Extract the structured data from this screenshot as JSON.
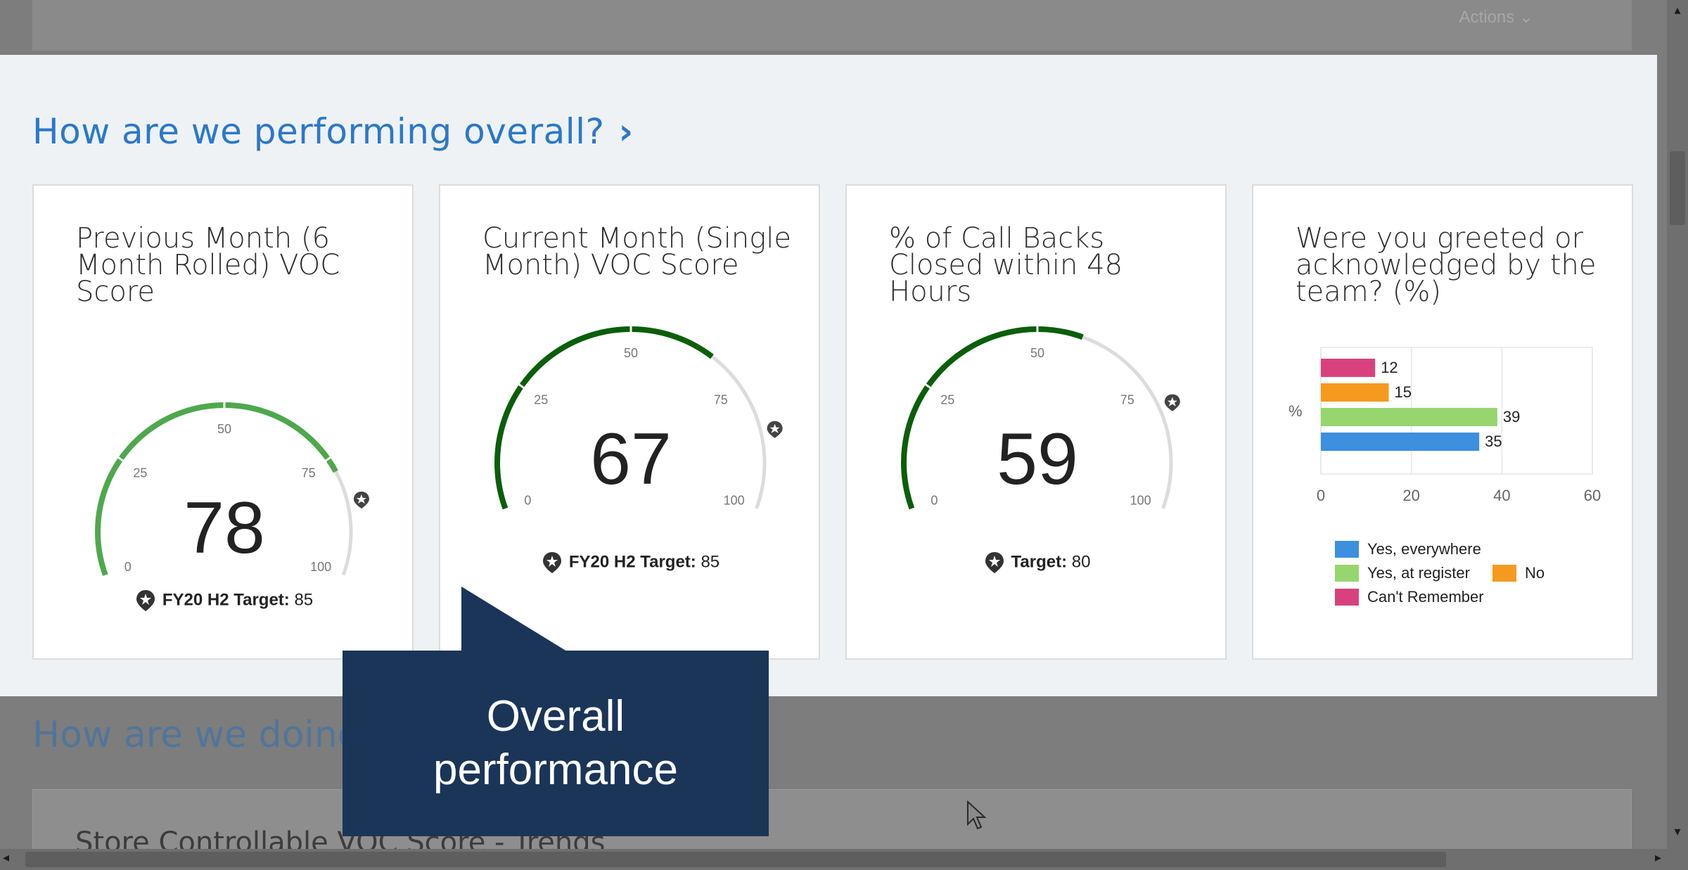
{
  "background": {
    "actions_label": "Actions",
    "next_section_title": "How are we doing",
    "next_card_title": "Store Controllable VOC Score - Trends"
  },
  "section": {
    "title": "How are we performing overall?",
    "chevron_icon": "chevron-right-icon"
  },
  "cards": [
    {
      "title": "Previous Month (6 Month Rolled) VOC Score",
      "value": "78",
      "gauge": {
        "min": 0,
        "max": 100,
        "value": 78,
        "target": 85,
        "ticks": [
          "0",
          "25",
          "50",
          "75",
          "100"
        ],
        "color": "#4ea84c"
      },
      "target_label": "FY20 H2 Target:",
      "target_value": "85"
    },
    {
      "title": "Current Month (Single Month) VOC Score",
      "value": "67",
      "gauge": {
        "min": 0,
        "max": 100,
        "value": 67,
        "target": 85,
        "ticks": [
          "0",
          "25",
          "50",
          "75",
          "100"
        ],
        "color": "#0b5e0b"
      },
      "target_label": "FY20 H2 Target:",
      "target_value": "85"
    },
    {
      "title": "% of Call Backs Closed within 48 Hours",
      "value": "59",
      "gauge": {
        "min": 0,
        "max": 100,
        "value": 59,
        "target": 80,
        "ticks": [
          "0",
          "25",
          "50",
          "75",
          "100"
        ],
        "color": "#0b5e0b"
      },
      "target_label": "Target:",
      "target_value": "80"
    },
    {
      "title": "Were you greeted or acknowledged by the team? (%)",
      "chart_ref": "chart_data"
    }
  ],
  "chart_data": {
    "type": "bar",
    "orientation": "horizontal",
    "title": "Were you greeted or acknowledged by the team? (%)",
    "ylabel": "%",
    "xlim": [
      0,
      60
    ],
    "x_ticks": [
      "0",
      "20",
      "40",
      "60"
    ],
    "grid": true,
    "series": [
      {
        "name": "Can't Remember",
        "value": 12,
        "color": "#d9417e"
      },
      {
        "name": "No",
        "value": 15,
        "color": "#f59a1f"
      },
      {
        "name": "Yes, at register",
        "value": 39,
        "color": "#97d66e"
      },
      {
        "name": "Yes, everywhere",
        "value": 35,
        "color": "#3d8fe0"
      }
    ],
    "legend_placement": "bottom"
  },
  "callout": {
    "line1": "Overall",
    "line2": "performance"
  }
}
